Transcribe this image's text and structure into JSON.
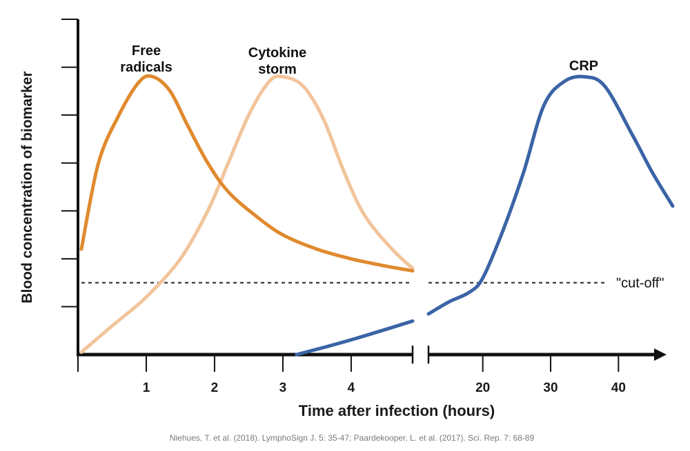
{
  "chart_data": {
    "type": "line",
    "title": "",
    "xlabel": "Time after infection (hours)",
    "ylabel": "Blood concentration of biomarker",
    "x_segments": [
      {
        "range": [
          0,
          4.9
        ],
        "ticks": [
          1,
          2,
          3,
          4
        ]
      },
      {
        "range": [
          12,
          48
        ],
        "ticks": [
          20,
          30,
          40
        ]
      }
    ],
    "ylim": [
      0,
      7.0
    ],
    "y_ticks_labeled": false,
    "grid": false,
    "threshold": {
      "label": "\"cut-off\"",
      "y": 1.5
    },
    "series": [
      {
        "name": "Free\nradicals",
        "color": "#e08a2e",
        "segment": 0,
        "points": [
          [
            0.05,
            2.2
          ],
          [
            0.3,
            4.0
          ],
          [
            0.6,
            5.0
          ],
          [
            0.9,
            5.7
          ],
          [
            1.1,
            5.8
          ],
          [
            1.35,
            5.5
          ],
          [
            1.6,
            4.8
          ],
          [
            1.9,
            4.0
          ],
          [
            2.2,
            3.4
          ],
          [
            2.6,
            2.9
          ],
          [
            3.0,
            2.5
          ],
          [
            3.5,
            2.2
          ],
          [
            4.0,
            2.0
          ],
          [
            4.5,
            1.85
          ],
          [
            4.9,
            1.75
          ]
        ]
      },
      {
        "name": "Cytokine\nstorm",
        "color": "#f2c49b",
        "segment": 0,
        "points": [
          [
            0.05,
            0.05
          ],
          [
            0.5,
            0.6
          ],
          [
            1.0,
            1.2
          ],
          [
            1.5,
            2.0
          ],
          [
            1.9,
            3.0
          ],
          [
            2.2,
            4.0
          ],
          [
            2.5,
            5.0
          ],
          [
            2.8,
            5.7
          ],
          [
            3.0,
            5.8
          ],
          [
            3.3,
            5.6
          ],
          [
            3.6,
            4.9
          ],
          [
            3.9,
            3.8
          ],
          [
            4.2,
            2.9
          ],
          [
            4.6,
            2.2
          ],
          [
            4.9,
            1.8
          ]
        ]
      },
      {
        "name": "CRP",
        "color": "#3b64a6",
        "segment": "both",
        "points": [
          [
            3.2,
            0.0
          ],
          [
            3.6,
            0.15
          ],
          [
            4.1,
            0.35
          ],
          [
            4.9,
            0.7
          ],
          [
            12,
            0.85
          ],
          [
            15,
            1.1
          ],
          [
            18,
            1.3
          ],
          [
            20,
            1.6
          ],
          [
            23,
            2.6
          ],
          [
            26,
            3.8
          ],
          [
            29,
            5.2
          ],
          [
            32,
            5.7
          ],
          [
            35,
            5.8
          ],
          [
            38,
            5.6
          ],
          [
            42,
            4.6
          ],
          [
            45,
            3.8
          ],
          [
            48,
            3.1
          ]
        ]
      }
    ]
  },
  "caption": "Niehues, T. et al. (2018). LymphoSign J. 5: 35-47; Paardekooper, L. et al. (2017). Sci. Rep. 7: 68-89"
}
